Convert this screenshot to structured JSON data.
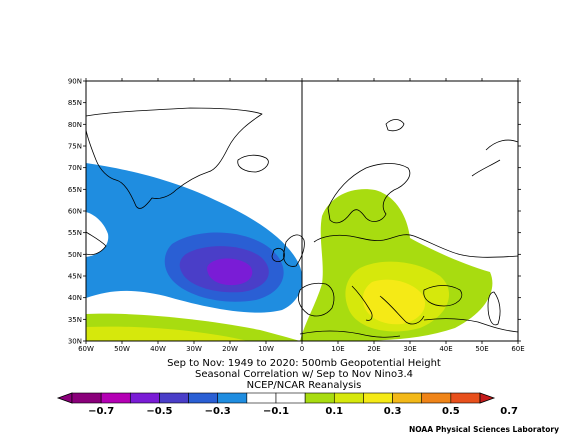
{
  "map": {
    "lat_labels": [
      "90N",
      "85N",
      "80N",
      "75N",
      "70N",
      "65N",
      "60N",
      "55N",
      "50N",
      "45N",
      "40N",
      "35N",
      "30N"
    ],
    "lon_labels": [
      "60W",
      "50W",
      "40W",
      "30W",
      "20W",
      "10W",
      "0",
      "10E",
      "20E",
      "30E",
      "40E",
      "50E",
      "60E"
    ],
    "contour_colors": {
      "c_minus_0_1": "#1f8de0",
      "c_minus_0_2": "#2a5fd4",
      "c_minus_0_3": "#4a3ec8",
      "c_minus_0_4": "#7a1cd6",
      "c_plus_0_1": "#a8dc10",
      "c_plus_0_2": "#d6e80c",
      "c_plus_0_3": "#f5ea16",
      "land_outline": "#000000"
    }
  },
  "caption": {
    "line1": "Sep to Nov: 1949 to 2020: 500mb Geopotential Height",
    "line2": "Seasonal Correlation w/ Sep to Nov Nino3.4",
    "line3": "NCEP/NCAR Reanalysis"
  },
  "colorbar": {
    "labels": [
      "−0.7",
      "−0.5",
      "−0.3",
      "−0.1",
      "0.1",
      "0.3",
      "0.5",
      "0.7"
    ],
    "colors": [
      "#8a007a",
      "#b400b4",
      "#7a1cd6",
      "#4a3ec8",
      "#2a5fd4",
      "#1f8de0",
      "#ffffff",
      "#ffffff",
      "#a8dc10",
      "#d6e80c",
      "#f5ea16",
      "#f2b818",
      "#ef8418",
      "#e8501c"
    ]
  },
  "credit": "NOAA Physical Sciences Laboratory"
}
